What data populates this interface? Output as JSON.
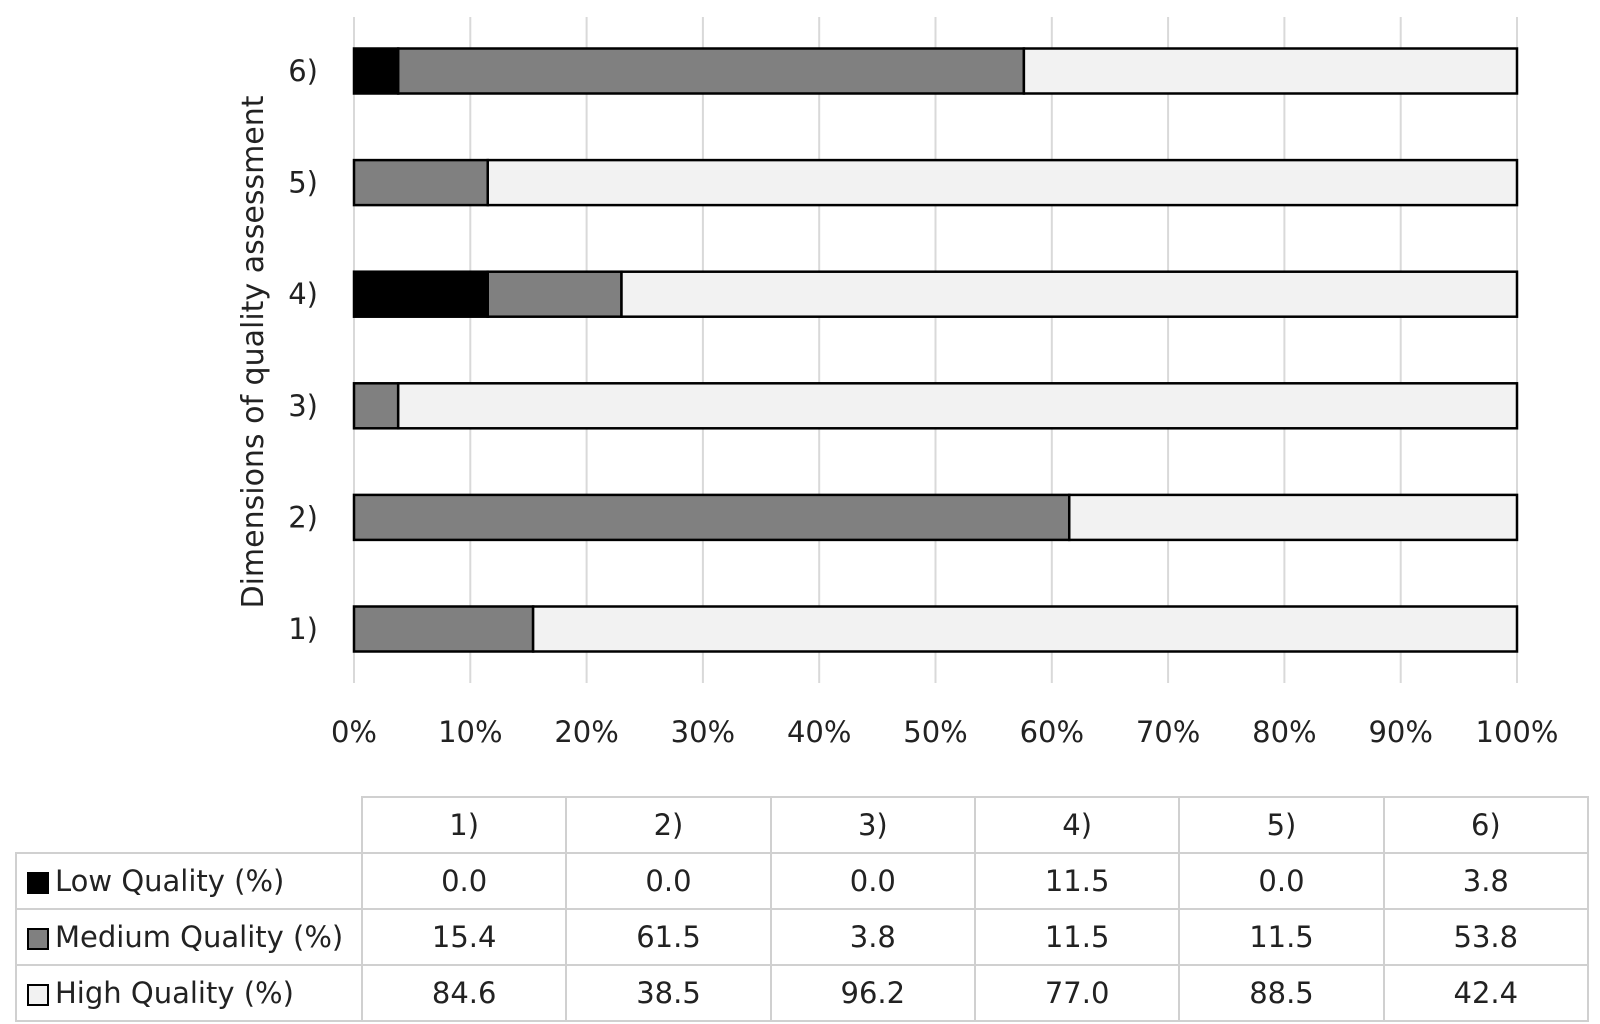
{
  "chart_data": {
    "type": "bar",
    "orientation": "horizontal",
    "stacked": true,
    "ylabel": "Dimensions of quality assessment",
    "xlabel": "",
    "categories": [
      "1)",
      "2)",
      "3)",
      "4)",
      "5)",
      "6)"
    ],
    "xlim": [
      0,
      100
    ],
    "x_ticks": [
      "0%",
      "10%",
      "20%",
      "30%",
      "40%",
      "50%",
      "60%",
      "70%",
      "80%",
      "90%",
      "100%"
    ],
    "grid": "vertical",
    "legend": "data table below chart",
    "series": [
      {
        "name": "Low Quality (%)",
        "color": "#000000",
        "values": [
          0.0,
          0.0,
          0.0,
          11.5,
          0.0,
          3.8
        ]
      },
      {
        "name": "Medium Quality (%)",
        "color": "#808080",
        "values": [
          15.4,
          61.5,
          3.8,
          11.5,
          11.5,
          53.8
        ]
      },
      {
        "name": "High Quality (%)",
        "color": "#f2f2f2",
        "values": [
          84.6,
          38.5,
          96.2,
          77.0,
          88.5,
          42.4
        ]
      }
    ],
    "table": {
      "headers": [
        "1)",
        "2)",
        "3)",
        "4)",
        "5)",
        "6)"
      ],
      "rows": [
        {
          "label": "Low Quality (%)",
          "cells": [
            "0.0",
            "0.0",
            "0.0",
            "11.5",
            "0.0",
            "3.8"
          ]
        },
        {
          "label": "Medium Quality (%)",
          "cells": [
            "15.4",
            "61.5",
            "3.8",
            "11.5",
            "11.5",
            "53.8"
          ]
        },
        {
          "label": "High Quality (%)",
          "cells": [
            "84.6",
            "38.5",
            "96.2",
            "77.0",
            "88.5",
            "42.4"
          ]
        }
      ]
    }
  }
}
